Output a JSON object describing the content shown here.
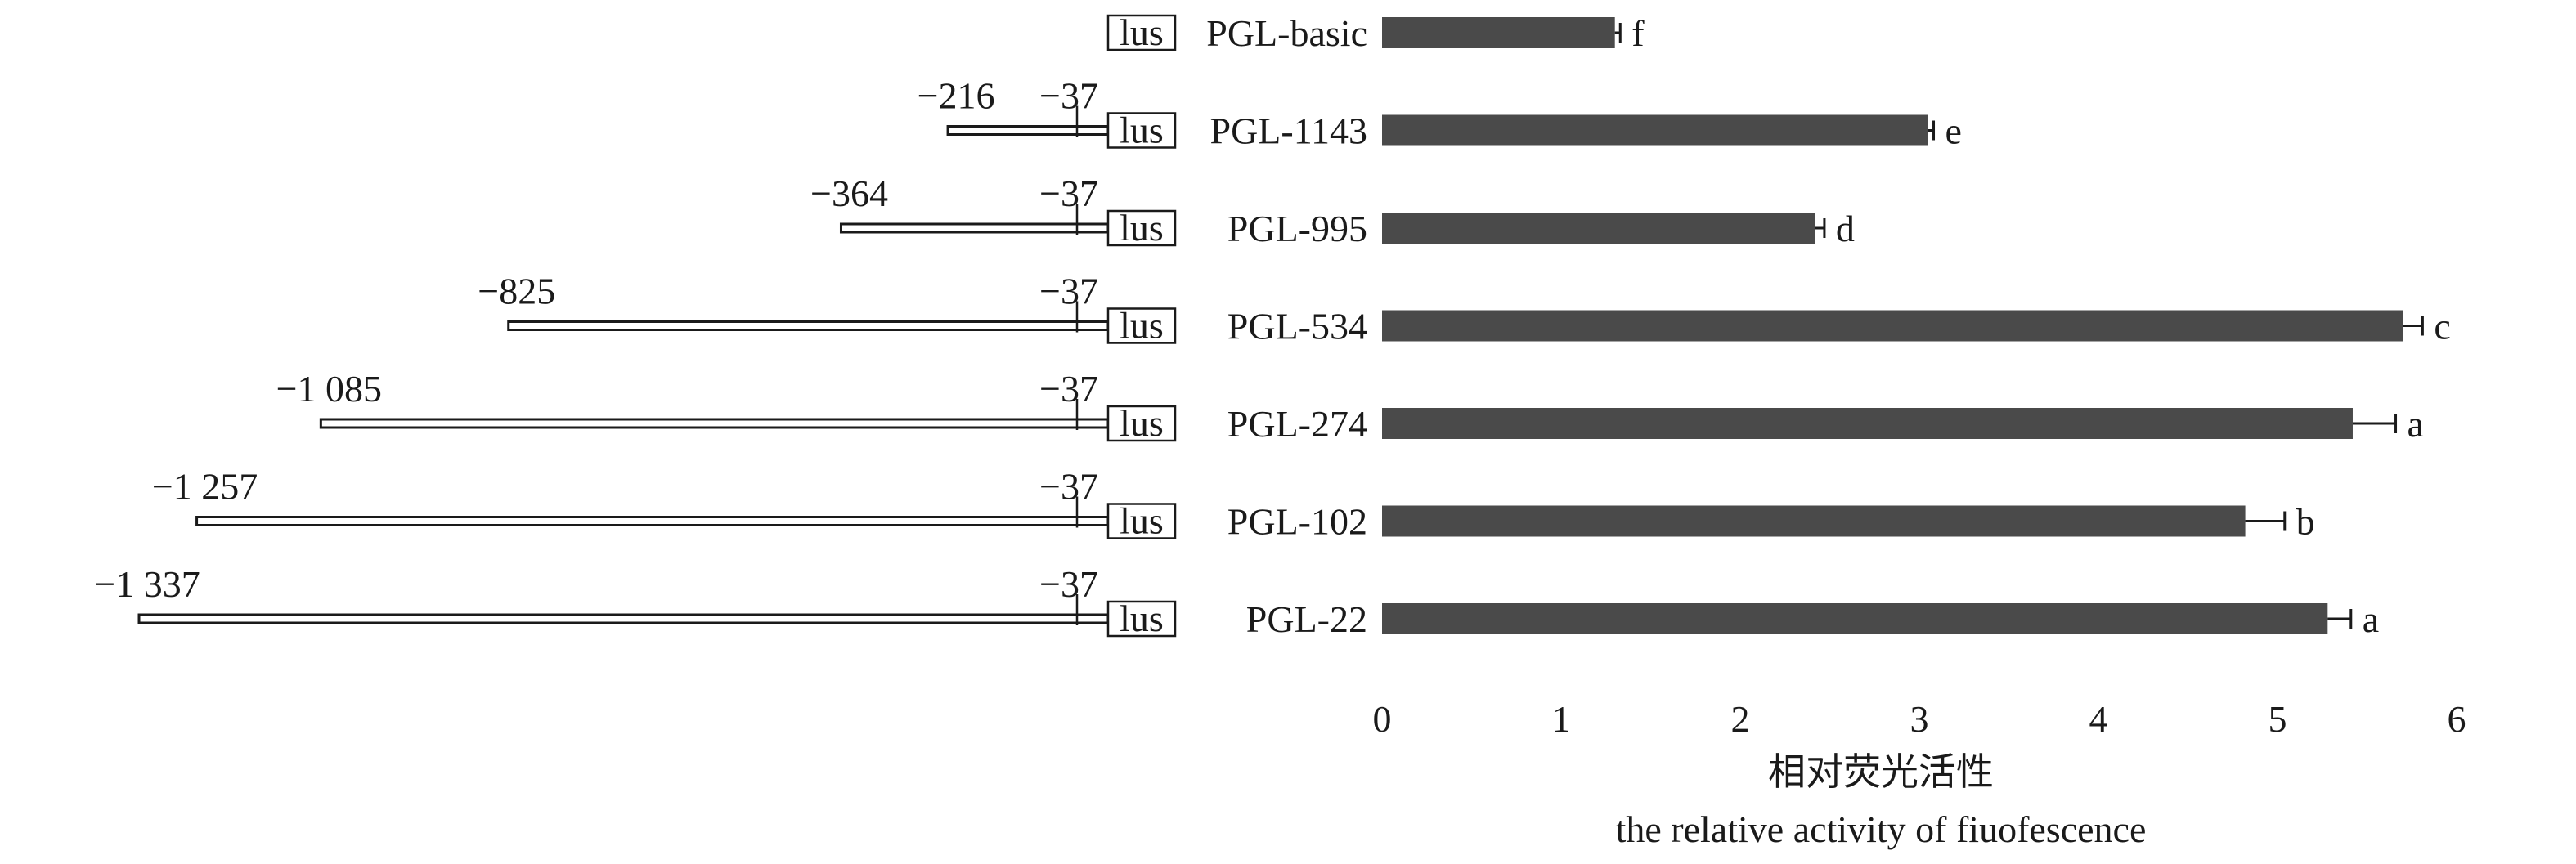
{
  "chart_data": {
    "type": "bar",
    "orientation": "horizontal",
    "categories": [
      "PGL-basic",
      "PGL-1143",
      "PGL-995",
      "PGL-534",
      "PGL-274",
      "PGL-102",
      "PGL-22"
    ],
    "values": [
      1.3,
      3.05,
      2.42,
      5.7,
      5.42,
      4.82,
      5.28
    ],
    "errors": [
      0.03,
      0.03,
      0.05,
      0.11,
      0.24,
      0.22,
      0.13
    ],
    "significance": [
      "f",
      "e",
      "d",
      "c",
      "a",
      "b",
      "a"
    ],
    "xlim": [
      0,
      6
    ],
    "x_ticks": [
      "0",
      "1",
      "2",
      "3",
      "4",
      "5",
      "6"
    ],
    "xlabel": "相对荧光活性",
    "xlabel_en": "the relative activity of fiuofescence",
    "bar_color": "#4a4a4a",
    "promoter_starts": [
      null,
      -216,
      -364,
      -825,
      -1085,
      -1257,
      -1337
    ],
    "start_labels": [
      "",
      "−216",
      "−364",
      "−825",
      "−1 085",
      "−1 257",
      "−1 337"
    ],
    "tss_position": -37,
    "tss_label": "−37",
    "reporter_label": "lus"
  }
}
